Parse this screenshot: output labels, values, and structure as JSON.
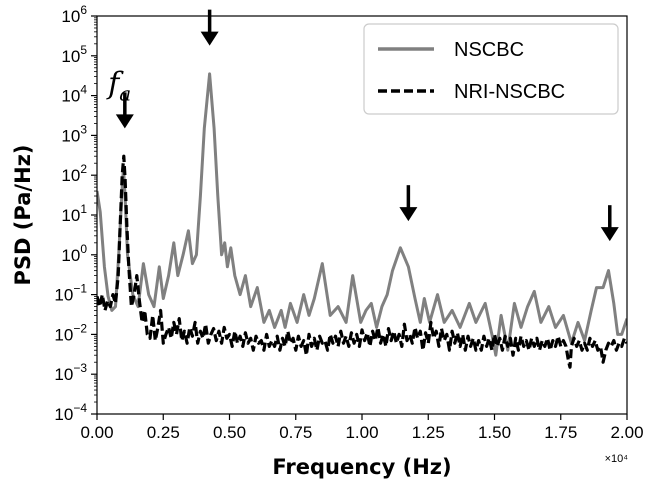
{
  "chart_data": {
    "type": "line",
    "xlabel": "Frequency (Hz)",
    "ylabel": "PSD (Pa/Hz)",
    "x_offset_label": "×10⁴",
    "xlim": [
      0,
      20000
    ],
    "ylim": [
      0.0001,
      1000000
    ],
    "yscale": "log",
    "x_ticks": [
      0,
      2500,
      5000,
      7500,
      10000,
      12500,
      15000,
      17500,
      20000
    ],
    "x_tick_labels": [
      "0.00",
      "0.25",
      "0.50",
      "0.75",
      "1.00",
      "1.25",
      "1.50",
      "1.75",
      "2.00"
    ],
    "y_ticks": [
      0.0001,
      0.001,
      0.01,
      0.1,
      1,
      10,
      100,
      1000,
      10000,
      100000,
      1000000
    ],
    "y_tick_exponents": [
      "−4",
      "−3",
      "−2",
      "−1",
      "0",
      "1",
      "2",
      "3",
      "4",
      "5",
      "6"
    ],
    "y_tick_base": "10",
    "grid": false,
    "legend_position": "top-right",
    "series": [
      {
        "name": "NSCBC",
        "style": "solid",
        "color": "#808080",
        "points": [
          [
            0,
            40
          ],
          [
            120,
            12
          ],
          [
            280,
            0.5
          ],
          [
            420,
            0.09
          ],
          [
            560,
            0.04
          ],
          [
            700,
            0.05
          ],
          [
            820,
            1
          ],
          [
            950,
            50
          ],
          [
            1000,
            150
          ],
          [
            1060,
            30
          ],
          [
            1150,
            1
          ],
          [
            1350,
            0.1
          ],
          [
            1550,
            0.05
          ],
          [
            1750,
            0.6
          ],
          [
            1950,
            0.1
          ],
          [
            2150,
            0.05
          ],
          [
            2350,
            0.5
          ],
          [
            2500,
            0.08
          ],
          [
            2700,
            0.3
          ],
          [
            2900,
            2
          ],
          [
            3050,
            0.3
          ],
          [
            3250,
            1
          ],
          [
            3450,
            4
          ],
          [
            3600,
            0.6
          ],
          [
            3750,
            1
          ],
          [
            3900,
            30
          ],
          [
            4050,
            1500
          ],
          [
            4250,
            35000
          ],
          [
            4420,
            1500
          ],
          [
            4560,
            30
          ],
          [
            4700,
            1
          ],
          [
            4820,
            2
          ],
          [
            4920,
            0.5
          ],
          [
            5050,
            1.5
          ],
          [
            5200,
            0.3
          ],
          [
            5400,
            0.1
          ],
          [
            5600,
            0.3
          ],
          [
            5800,
            0.05
          ],
          [
            6050,
            0.15
          ],
          [
            6300,
            0.02
          ],
          [
            6500,
            0.04
          ],
          [
            6700,
            0.015
          ],
          [
            6950,
            0.04
          ],
          [
            7100,
            0.015
          ],
          [
            7300,
            0.06
          ],
          [
            7550,
            0.02
          ],
          [
            7800,
            0.1
          ],
          [
            8000,
            0.03
          ],
          [
            8200,
            0.08
          ],
          [
            8500,
            0.6
          ],
          [
            8800,
            0.03
          ],
          [
            9100,
            0.05
          ],
          [
            9400,
            0.02
          ],
          [
            9650,
            0.3
          ],
          [
            9950,
            0.02
          ],
          [
            10150,
            0.04
          ],
          [
            10350,
            0.06
          ],
          [
            10550,
            0.015
          ],
          [
            10750,
            0.05
          ],
          [
            10950,
            0.1
          ],
          [
            11150,
            0.4
          ],
          [
            11450,
            1.5
          ],
          [
            11750,
            0.5
          ],
          [
            12000,
            0.08
          ],
          [
            12200,
            0.02
          ],
          [
            12350,
            0.08
          ],
          [
            12550,
            0.02
          ],
          [
            12850,
            0.1
          ],
          [
            13100,
            0.02
          ],
          [
            13400,
            0.04
          ],
          [
            13700,
            0.015
          ],
          [
            14050,
            0.06
          ],
          [
            14300,
            0.02
          ],
          [
            14650,
            0.06
          ],
          [
            14900,
            0.01
          ],
          [
            15050,
            0.003
          ],
          [
            15250,
            0.03
          ],
          [
            15500,
            0.004
          ],
          [
            15750,
            0.06
          ],
          [
            16000,
            0.015
          ],
          [
            16250,
            0.05
          ],
          [
            16500,
            0.12
          ],
          [
            16750,
            0.02
          ],
          [
            17050,
            0.05
          ],
          [
            17300,
            0.015
          ],
          [
            17600,
            0.03
          ],
          [
            17900,
            0.006
          ],
          [
            18150,
            0.02
          ],
          [
            18400,
            0.007
          ],
          [
            18650,
            0.04
          ],
          [
            18850,
            0.15
          ],
          [
            19100,
            0.15
          ],
          [
            19300,
            0.4
          ],
          [
            19500,
            0.06
          ],
          [
            19650,
            0.01
          ],
          [
            19800,
            0.01
          ],
          [
            20000,
            0.025
          ]
        ]
      },
      {
        "name": "NRI-NSCBC",
        "style": "dashed",
        "color": "#000000",
        "points": [
          [
            0,
            0.09
          ],
          [
            100,
            0.05
          ],
          [
            200,
            0.1
          ],
          [
            300,
            0.04
          ],
          [
            400,
            0.07
          ],
          [
            500,
            0.05
          ],
          [
            600,
            0.1
          ],
          [
            700,
            0.06
          ],
          [
            800,
            0.3
          ],
          [
            870,
            5
          ],
          [
            950,
            100
          ],
          [
            1010,
            300
          ],
          [
            1060,
            80
          ],
          [
            1130,
            5
          ],
          [
            1200,
            0.5
          ],
          [
            1300,
            0.05
          ],
          [
            1400,
            0.1
          ],
          [
            1500,
            0.3
          ],
          [
            1600,
            0.07
          ],
          [
            1700,
            0.02
          ],
          [
            1800,
            0.04
          ],
          [
            1900,
            0.01
          ],
          [
            2000,
            0.008
          ],
          [
            2100,
            0.03
          ],
          [
            2200,
            0.007
          ],
          [
            2300,
            0.015
          ],
          [
            2400,
            0.04
          ],
          [
            2500,
            0.006
          ],
          [
            2600,
            0.01
          ],
          [
            2700,
            0.015
          ],
          [
            2800,
            0.008
          ],
          [
            2900,
            0.02
          ],
          [
            3000,
            0.01
          ],
          [
            3100,
            0.025
          ],
          [
            3200,
            0.007
          ],
          [
            3300,
            0.012
          ],
          [
            3400,
            0.006
          ],
          [
            3500,
            0.015
          ],
          [
            3600,
            0.009
          ],
          [
            3700,
            0.02
          ],
          [
            3800,
            0.006
          ],
          [
            3900,
            0.012
          ],
          [
            4000,
            0.008
          ],
          [
            4100,
            0.018
          ],
          [
            4200,
            0.006
          ],
          [
            4300,
            0.01
          ],
          [
            4400,
            0.014
          ],
          [
            4500,
            0.007
          ],
          [
            4600,
            0.012
          ],
          [
            4700,
            0.006
          ],
          [
            4800,
            0.015
          ],
          [
            4900,
            0.008
          ],
          [
            5000,
            0.01
          ],
          [
            5100,
            0.005
          ],
          [
            5200,
            0.012
          ],
          [
            5300,
            0.006
          ],
          [
            5400,
            0.009
          ],
          [
            5500,
            0.005
          ],
          [
            5600,
            0.011
          ],
          [
            5700,
            0.006
          ],
          [
            5800,
            0.008
          ],
          [
            5900,
            0.004
          ],
          [
            6000,
            0.009
          ],
          [
            6100,
            0.006
          ],
          [
            6200,
            0.007
          ],
          [
            6300,
            0.004
          ],
          [
            6400,
            0.01
          ],
          [
            6500,
            0.005
          ],
          [
            6600,
            0.007
          ],
          [
            6700,
            0.005
          ],
          [
            6800,
            0.009
          ],
          [
            6900,
            0.004
          ],
          [
            7000,
            0.008
          ],
          [
            7100,
            0.005
          ],
          [
            7200,
            0.012
          ],
          [
            7300,
            0.006
          ],
          [
            7400,
            0.008
          ],
          [
            7500,
            0.004
          ],
          [
            7600,
            0.009
          ],
          [
            7700,
            0.005
          ],
          [
            7800,
            0.007
          ],
          [
            7900,
            0.003
          ],
          [
            8000,
            0.01
          ],
          [
            8100,
            0.005
          ],
          [
            8200,
            0.008
          ],
          [
            8300,
            0.004
          ],
          [
            8400,
            0.009
          ],
          [
            8500,
            0.006
          ],
          [
            8600,
            0.007
          ],
          [
            8700,
            0.004
          ],
          [
            8800,
            0.01
          ],
          [
            8900,
            0.006
          ],
          [
            9000,
            0.009
          ],
          [
            9100,
            0.005
          ],
          [
            9200,
            0.012
          ],
          [
            9300,
            0.006
          ],
          [
            9400,
            0.009
          ],
          [
            9500,
            0.005
          ],
          [
            9600,
            0.011
          ],
          [
            9700,
            0.006
          ],
          [
            9800,
            0.01
          ],
          [
            9900,
            0.005
          ],
          [
            10000,
            0.013
          ],
          [
            10100,
            0.007
          ],
          [
            10200,
            0.011
          ],
          [
            10300,
            0.005
          ],
          [
            10400,
            0.012
          ],
          [
            10500,
            0.007
          ],
          [
            10600,
            0.015
          ],
          [
            10700,
            0.006
          ],
          [
            10800,
            0.01
          ],
          [
            10900,
            0.005
          ],
          [
            11000,
            0.014
          ],
          [
            11100,
            0.007
          ],
          [
            11200,
            0.012
          ],
          [
            11300,
            0.006
          ],
          [
            11400,
            0.01
          ],
          [
            11500,
            0.005
          ],
          [
            11600,
            0.018
          ],
          [
            11700,
            0.007
          ],
          [
            11800,
            0.01
          ],
          [
            11900,
            0.006
          ],
          [
            12000,
            0.015
          ],
          [
            12100,
            0.008
          ],
          [
            12200,
            0.012
          ],
          [
            12300,
            0.004
          ],
          [
            12400,
            0.011
          ],
          [
            12500,
            0.006
          ],
          [
            12600,
            0.02
          ],
          [
            12700,
            0.008
          ],
          [
            12800,
            0.012
          ],
          [
            12900,
            0.005
          ],
          [
            13000,
            0.014
          ],
          [
            13100,
            0.007
          ],
          [
            13200,
            0.01
          ],
          [
            13300,
            0.004
          ],
          [
            13400,
            0.012
          ],
          [
            13500,
            0.006
          ],
          [
            13600,
            0.011
          ],
          [
            13700,
            0.005
          ],
          [
            13800,
            0.01
          ],
          [
            13900,
            0.004
          ],
          [
            14000,
            0.009
          ],
          [
            14100,
            0.005
          ],
          [
            14200,
            0.008
          ],
          [
            14300,
            0.004
          ],
          [
            14400,
            0.007
          ],
          [
            14500,
            0.004
          ],
          [
            14600,
            0.009
          ],
          [
            14700,
            0.005
          ],
          [
            14800,
            0.008
          ],
          [
            14900,
            0.004
          ],
          [
            15000,
            0.01
          ],
          [
            15100,
            0.005
          ],
          [
            15200,
            0.008
          ],
          [
            15300,
            0.004
          ],
          [
            15400,
            0.009
          ],
          [
            15500,
            0.005
          ],
          [
            15600,
            0.008
          ],
          [
            15700,
            0.003
          ],
          [
            15800,
            0.008
          ],
          [
            15900,
            0.004
          ],
          [
            16000,
            0.009
          ],
          [
            16100,
            0.005
          ],
          [
            16200,
            0.007
          ],
          [
            16300,
            0.004
          ],
          [
            16400,
            0.008
          ],
          [
            16500,
            0.005
          ],
          [
            16600,
            0.008
          ],
          [
            16700,
            0.004
          ],
          [
            16800,
            0.007
          ],
          [
            16900,
            0.005
          ],
          [
            17000,
            0.008
          ],
          [
            17100,
            0.004
          ],
          [
            17200,
            0.007
          ],
          [
            17300,
            0.005
          ],
          [
            17400,
            0.009
          ],
          [
            17500,
            0.005
          ],
          [
            17600,
            0.007
          ],
          [
            17700,
            0.005
          ],
          [
            17800,
            0.002
          ],
          [
            17850,
            0.0015
          ],
          [
            17900,
            0.005
          ],
          [
            18000,
            0.008
          ],
          [
            18100,
            0.005
          ],
          [
            18200,
            0.007
          ],
          [
            18300,
            0.004
          ],
          [
            18400,
            0.006
          ],
          [
            18500,
            0.004
          ],
          [
            18600,
            0.008
          ],
          [
            18700,
            0.005
          ],
          [
            18800,
            0.007
          ],
          [
            18900,
            0.004
          ],
          [
            19000,
            0.005
          ],
          [
            19100,
            0.002
          ],
          [
            19200,
            0.004
          ],
          [
            19300,
            0.006
          ],
          [
            19400,
            0.005
          ],
          [
            19500,
            0.007
          ],
          [
            19600,
            0.004
          ],
          [
            19700,
            0.006
          ],
          [
            19800,
            0.005
          ],
          [
            19900,
            0.008
          ],
          [
            20000,
            0.006
          ]
        ]
      }
    ],
    "annotations": {
      "label": "f",
      "label_subscript": "a",
      "label_anchor": [
        950,
        20000
      ],
      "arrows": [
        {
          "x": 1050,
          "y": 1500
        },
        {
          "x": 4250,
          "y": 180000
        },
        {
          "x": 11750,
          "y": 7
        },
        {
          "x": 19350,
          "y": 2.2
        }
      ]
    }
  }
}
